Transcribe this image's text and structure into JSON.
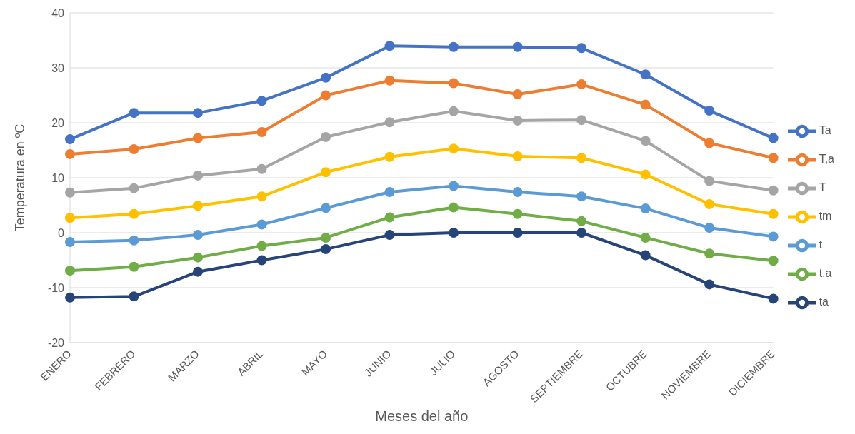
{
  "chart_data": {
    "type": "line",
    "xlabel": "Meses del año",
    "ylabel": "Temperatura en ºC",
    "categories": [
      "ENERO",
      "FEBRERO",
      "MARZO",
      "ABRIL",
      "MAYO",
      "JUNIO",
      "JULIO",
      "AGOSTO",
      "SEPTIEMBRE",
      "OCTUBRE",
      "NOVIEMBRE",
      "DICIEMBRE"
    ],
    "series": [
      {
        "name": "Ta",
        "color": "#4472c4",
        "values": [
          17.0,
          21.8,
          21.8,
          24.0,
          28.2,
          34.0,
          33.8,
          33.8,
          33.6,
          28.8,
          22.2,
          17.2
        ]
      },
      {
        "name": "T,a",
        "color": "#ed7d31",
        "values": [
          14.3,
          15.2,
          17.2,
          18.3,
          25.0,
          27.7,
          27.2,
          25.2,
          27.0,
          23.3,
          16.3,
          13.6
        ]
      },
      {
        "name": "T",
        "color": "#a5a5a5",
        "values": [
          7.3,
          8.1,
          10.4,
          11.6,
          17.4,
          20.1,
          22.1,
          20.4,
          20.5,
          16.7,
          9.4,
          7.7
        ]
      },
      {
        "name": "tm",
        "color": "#ffc000",
        "values": [
          2.7,
          3.4,
          4.9,
          6.6,
          11.0,
          13.8,
          15.3,
          13.9,
          13.6,
          10.6,
          5.2,
          3.4
        ]
      },
      {
        "name": "t",
        "color": "#5b9bd5",
        "values": [
          -1.7,
          -1.4,
          -0.4,
          1.5,
          4.5,
          7.4,
          8.5,
          7.4,
          6.6,
          4.4,
          0.9,
          -0.7
        ]
      },
      {
        "name": "t,a",
        "color": "#70ad47",
        "values": [
          -6.9,
          -6.2,
          -4.5,
          -2.4,
          -0.9,
          2.8,
          4.6,
          3.4,
          2.1,
          -0.9,
          -3.8,
          -5.1
        ]
      },
      {
        "name": "ta",
        "color": "#264478",
        "values": [
          -11.8,
          -11.6,
          -7.1,
          -5.0,
          -3.0,
          -0.4,
          0,
          0,
          0,
          -4.1,
          -9.4,
          -12.0
        ]
      }
    ],
    "ylim": [
      -20,
      40
    ],
    "yticks": [
      -20,
      -10,
      0,
      10,
      20,
      30,
      40
    ],
    "grid": "y",
    "legend": "right",
    "marker": "circle",
    "line_style": "solid"
  }
}
